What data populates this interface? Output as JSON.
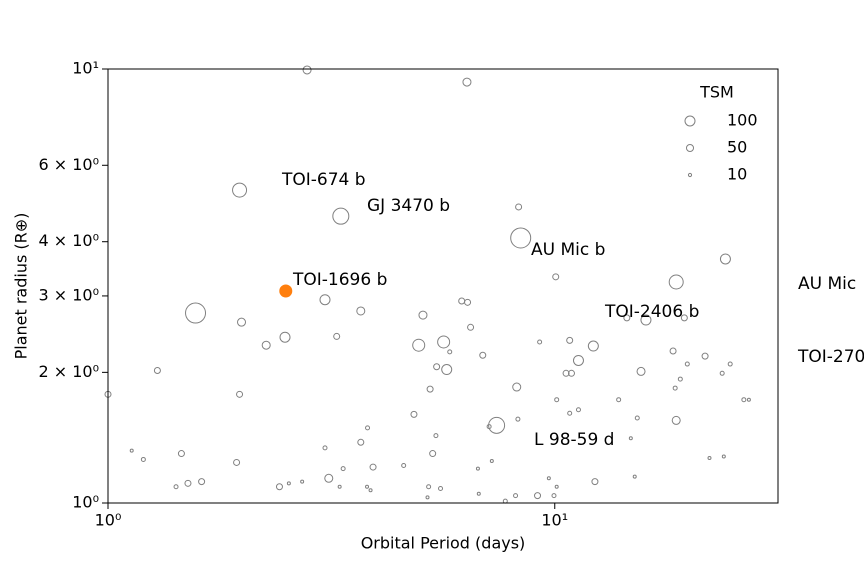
{
  "chart_data": {
    "type": "scatter",
    "xlabel": "Orbital Period (days)",
    "ylabel": "Planet radius (R⊕)",
    "log_x": true,
    "log_y": true,
    "grid": false,
    "xlim": [
      1,
      31.6
    ],
    "ylim": [
      1,
      10
    ],
    "xticks": [
      {
        "value": 1,
        "label": "10⁰"
      },
      {
        "value": 10,
        "label": "10¹"
      }
    ],
    "yticks": [
      {
        "value": 1,
        "label": "10⁰"
      },
      {
        "value": 2,
        "label": "2 × 10⁰"
      },
      {
        "value": 3,
        "label": "3 × 10⁰"
      },
      {
        "value": 4,
        "label": "4 × 10⁰"
      },
      {
        "value": 6,
        "label": "6 × 10⁰"
      },
      {
        "value": 10,
        "label": "10¹"
      }
    ],
    "legend": {
      "title": "TSM",
      "loc": "upper right",
      "sizes": [
        100,
        50,
        10
      ]
    },
    "series": [
      {
        "color": "#808080",
        "x": [
          2.79,
          6.36,
          1.97,
          3.32,
          8.3,
          8.39,
          10.05,
          18.7,
          24.1,
          1.57,
          3.06,
          3.68,
          1.99,
          2.49,
          2.26,
          3.25,
          5.07,
          6.19,
          6.38,
          6.48,
          5.64,
          4.96,
          5.82,
          6.9,
          5.73,
          5.44,
          9.25,
          10.8,
          11.3,
          12.2,
          10.6,
          10.9,
          14.5,
          16.0,
          19.5,
          18.4,
          21.7,
          19.8,
          15.6,
          24.7,
          23.7,
          1.29,
          1.97,
          1.0,
          8.22,
          5.26,
          19.1,
          18.6,
          4.84,
          7.41,
          8.27,
          7.13,
          10.1,
          11.3,
          10.8,
          13.9,
          15.3,
          18.7,
          26.5,
          27.2,
          3.81,
          3.68,
          5.42,
          5.33,
          3.06,
          1.13,
          1.2,
          1.46,
          1.94,
          3.36,
          3.92,
          4.59,
          7.23,
          6.73,
          3.12,
          2.42,
          2.54,
          2.72,
          3.3,
          1.42,
          1.51,
          1.62,
          3.8,
          3.87,
          5.22,
          5.19,
          5.55,
          6.76,
          7.75,
          8.17,
          9.15,
          9.96,
          10.1,
          9.7,
          12.3,
          15.1,
          14.8,
          22.2,
          23.9
        ],
        "y": [
          9.95,
          9.33,
          5.26,
          4.58,
          4.81,
          4.08,
          3.32,
          3.23,
          3.65,
          2.74,
          2.94,
          2.77,
          2.61,
          2.41,
          2.31,
          2.42,
          2.71,
          2.92,
          2.9,
          2.54,
          2.35,
          2.31,
          2.23,
          2.19,
          2.03,
          2.06,
          2.35,
          2.37,
          2.13,
          2.3,
          1.99,
          1.99,
          2.67,
          2.64,
          2.67,
          2.24,
          2.18,
          2.09,
          2.01,
          2.09,
          1.99,
          2.02,
          1.78,
          1.78,
          1.85,
          1.83,
          1.93,
          1.84,
          1.6,
          1.51,
          1.56,
          1.5,
          1.73,
          1.64,
          1.61,
          1.73,
          1.57,
          1.55,
          1.73,
          1.73,
          1.49,
          1.38,
          1.43,
          1.3,
          1.34,
          1.32,
          1.26,
          1.3,
          1.24,
          1.2,
          1.21,
          1.22,
          1.25,
          1.2,
          1.14,
          1.09,
          1.11,
          1.12,
          1.09,
          1.09,
          1.11,
          1.12,
          1.09,
          1.07,
          1.09,
          1.03,
          1.08,
          1.05,
          1.01,
          1.04,
          1.04,
          1.04,
          1.09,
          1.14,
          1.12,
          1.15,
          1.41,
          1.27,
          1.28
        ],
        "sizes": [
          64,
          64,
          196,
          256,
          36,
          400,
          36,
          196,
          100,
          400,
          100,
          64,
          64,
          100,
          64,
          36,
          64,
          36,
          36,
          36,
          144,
          144,
          16,
          36,
          100,
          36,
          16,
          36,
          100,
          100,
          36,
          36,
          36,
          100,
          36,
          36,
          36,
          16,
          64,
          16,
          16,
          36,
          36,
          36,
          64,
          36,
          16,
          16,
          36,
          256,
          16,
          16,
          16,
          16,
          16,
          16,
          16,
          64,
          16,
          9,
          16,
          36,
          16,
          36,
          16,
          9,
          16,
          36,
          36,
          16,
          36,
          16,
          9,
          9,
          64,
          36,
          9,
          9,
          9,
          16,
          36,
          36,
          9,
          9,
          16,
          9,
          16,
          9,
          16,
          16,
          36,
          16,
          9,
          9,
          36,
          9,
          9,
          9,
          9
        ]
      },
      {
        "color": "#ff7f0e",
        "filled": true,
        "x": [
          2.5
        ],
        "y": [
          3.08
        ],
        "sizes": [
          144
        ]
      }
    ],
    "annotations": [
      {
        "text": "TOI-674 b",
        "color": "#000000"
      },
      {
        "text": "GJ 3470 b",
        "color": "#000000"
      },
      {
        "text": "AU Mic b",
        "color": "#000000"
      },
      {
        "text": "TOI-1696 b",
        "color": "#ff7f0e"
      },
      {
        "text": "TOI-2406 b",
        "color": "#000000"
      },
      {
        "text": "L 98-59 d",
        "color": "#000000"
      },
      {
        "text": "AU Mic",
        "color": "#000000"
      },
      {
        "text": "TOI-270",
        "color": "#000000"
      }
    ]
  }
}
